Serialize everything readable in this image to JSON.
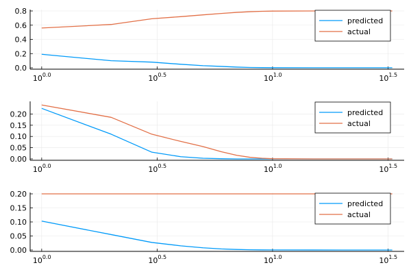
{
  "colors": {
    "predicted": "#009af9",
    "actual": "#e26f46",
    "grid": "#e8e8e8",
    "axis": "#000000"
  },
  "chart_data": [
    {
      "type": "line",
      "x_scale": "log10",
      "x_ticks": [
        {
          "base": "10",
          "exp": "0.0"
        },
        {
          "base": "10",
          "exp": "0.5"
        },
        {
          "base": "10",
          "exp": "1.0"
        },
        {
          "base": "10",
          "exp": "1.5"
        }
      ],
      "x": [
        1,
        2,
        3,
        4,
        5,
        6,
        7,
        8,
        9,
        10,
        15,
        20,
        25,
        30,
        33
      ],
      "ylim": [
        0,
        0.8
      ],
      "y_ticks": [
        "0.0",
        "0.2",
        "0.4",
        "0.6",
        "0.8"
      ],
      "legend": "top-right",
      "grid": true,
      "series": [
        {
          "name": "predicted",
          "values": [
            0.19,
            0.1,
            0.08,
            0.05,
            0.03,
            0.02,
            0.01,
            0.005,
            0.003,
            0.002,
            0.001,
            0.001,
            0.001,
            0.001,
            0.001
          ]
        },
        {
          "name": "actual",
          "values": [
            0.56,
            0.61,
            0.69,
            0.72,
            0.745,
            0.765,
            0.78,
            0.79,
            0.795,
            0.798,
            0.8,
            0.8,
            0.8,
            0.8,
            0.8
          ]
        }
      ]
    },
    {
      "type": "line",
      "x_scale": "log10",
      "x_ticks": [
        {
          "base": "10",
          "exp": "0.0"
        },
        {
          "base": "10",
          "exp": "0.5"
        },
        {
          "base": "10",
          "exp": "1.0"
        },
        {
          "base": "10",
          "exp": "1.5"
        }
      ],
      "x": [
        1,
        2,
        3,
        4,
        5,
        6,
        7,
        8,
        9,
        10,
        15,
        20,
        25,
        30,
        33
      ],
      "ylim": [
        0,
        0.25
      ],
      "y_ticks": [
        "0.00",
        "0.05",
        "0.10",
        "0.15",
        "0.20"
      ],
      "legend": "top-right",
      "grid": true,
      "series": [
        {
          "name": "predicted",
          "values": [
            0.225,
            0.11,
            0.03,
            0.01,
            0.003,
            0.001,
            0.0,
            0.0,
            0.0,
            0.0,
            0.0,
            0.0,
            0.0,
            0.0,
            0.0
          ]
        },
        {
          "name": "actual",
          "values": [
            0.24,
            0.185,
            0.11,
            0.078,
            0.055,
            0.032,
            0.016,
            0.007,
            0.003,
            0.001,
            0.0,
            0.0,
            0.0,
            0.0,
            0.0
          ]
        }
      ]
    },
    {
      "type": "line",
      "x_scale": "log10",
      "x_ticks": [
        {
          "base": "10",
          "exp": "0.0"
        },
        {
          "base": "10",
          "exp": "0.5"
        },
        {
          "base": "10",
          "exp": "1.0"
        },
        {
          "base": "10",
          "exp": "1.5"
        }
      ],
      "x": [
        1,
        2,
        3,
        4,
        5,
        6,
        7,
        8,
        9,
        10,
        15,
        20,
        25,
        30,
        33
      ],
      "ylim": [
        0,
        0.2
      ],
      "y_ticks": [
        "0.00",
        "0.05",
        "0.10",
        "0.15",
        "0.20"
      ],
      "legend": "top-right",
      "grid": true,
      "series": [
        {
          "name": "predicted",
          "values": [
            0.103,
            0.055,
            0.027,
            0.015,
            0.008,
            0.004,
            0.002,
            0.001,
            0.0005,
            0.0003,
            0.0001,
            0.0,
            0.0,
            0.0,
            0.0
          ]
        },
        {
          "name": "actual",
          "values": [
            0.2,
            0.2,
            0.2,
            0.2,
            0.2,
            0.2,
            0.2,
            0.2,
            0.2,
            0.2,
            0.2,
            0.2,
            0.2,
            0.2,
            0.2
          ]
        }
      ]
    }
  ]
}
